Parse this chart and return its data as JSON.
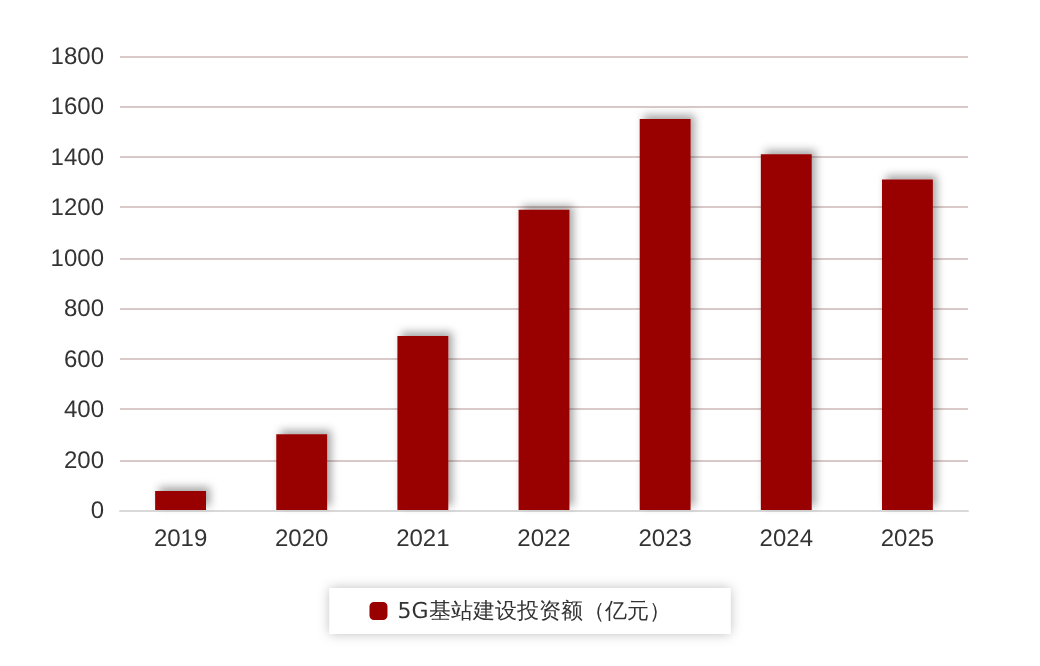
{
  "chart_data": {
    "type": "bar",
    "categories": [
      "2019",
      "2020",
      "2021",
      "2022",
      "2023",
      "2024",
      "2025"
    ],
    "series": [
      {
        "name": "5G基站建设投资额（亿元）",
        "color": "#990000",
        "values": [
          75,
          300,
          690,
          1190,
          1550,
          1410,
          1310
        ]
      }
    ],
    "ylim": [
      0,
      1800
    ],
    "yticks": [
      0,
      200,
      400,
      600,
      800,
      1000,
      1200,
      1400,
      1600,
      1800
    ],
    "grid": "y",
    "legend": "bottom"
  }
}
